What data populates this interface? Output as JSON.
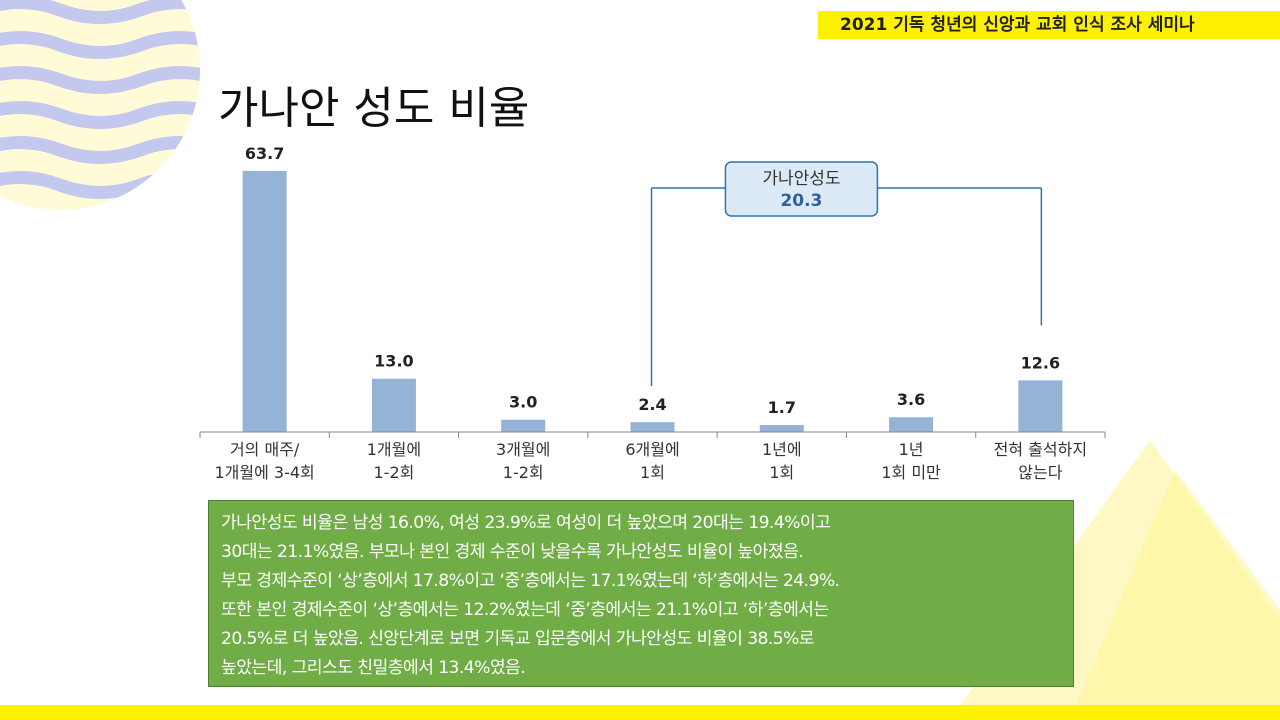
{
  "header": {
    "seminar_title": "2021 기독 청년의 신앙과 교회 인식 조사 세미나"
  },
  "page": {
    "title": "가나안 성도 비율"
  },
  "chart_data": {
    "type": "bar",
    "title": "",
    "xlabel": "",
    "ylabel": "",
    "ylim": [
      0,
      70
    ],
    "grid": false,
    "categories": [
      [
        "거의 매주/",
        "1개월에 3-4회"
      ],
      [
        "1개월에",
        "1-2회"
      ],
      [
        "3개월에",
        "1-2회"
      ],
      [
        "6개월에",
        "1회"
      ],
      [
        "1년에",
        "1회"
      ],
      [
        "1년",
        "1회 미만"
      ],
      [
        "전혀 출석하지",
        "않는다"
      ]
    ],
    "values": [
      63.7,
      13.0,
      3.0,
      2.4,
      1.7,
      3.6,
      12.6
    ],
    "value_labels": [
      "63.7",
      "13.0",
      "3.0",
      "2.4",
      "1.7",
      "3.6",
      "12.6"
    ],
    "annotation": {
      "label": "가나안성도",
      "value": "20.3",
      "spans": "6개월에 1회 ~ 전혀 출석하지 않는다"
    },
    "bar_color": "#95b3d7",
    "annotation_color": "#2e75b6",
    "annotation_fill": "#dce9f7"
  },
  "summary": {
    "lines": [
      "가나안성도 비율은 남성 16.0%, 여성 23.9%로 여성이 더 높았으며 20대는 19.4%이고",
      "30대는 21.1%였음. 부모나 본인 경제 수준이 낮을수록 가나안성도 비율이 높아졌음.",
      "부모 경제수준이 ‘상’층에서 17.8%이고 ‘중’층에서는 17.1%였는데 ‘하’층에서는 24.9%.",
      "또한 본인 경제수준이 ‘상’층에서는 12.2%였는데 ‘중’층에서는 21.1%이고 ‘하’층에서는",
      "20.5%로 더 높았음. 신앙단계로 보면 기독교 입문층에서 가나안성도 비율이 38.5%로",
      "높았는데, 그리스도 친밀층에서 13.4%였음."
    ],
    "bg_color": "#70ad47"
  },
  "theme": {
    "accent_yellow": "#fff200",
    "wave_color": "#c5c8ee"
  }
}
